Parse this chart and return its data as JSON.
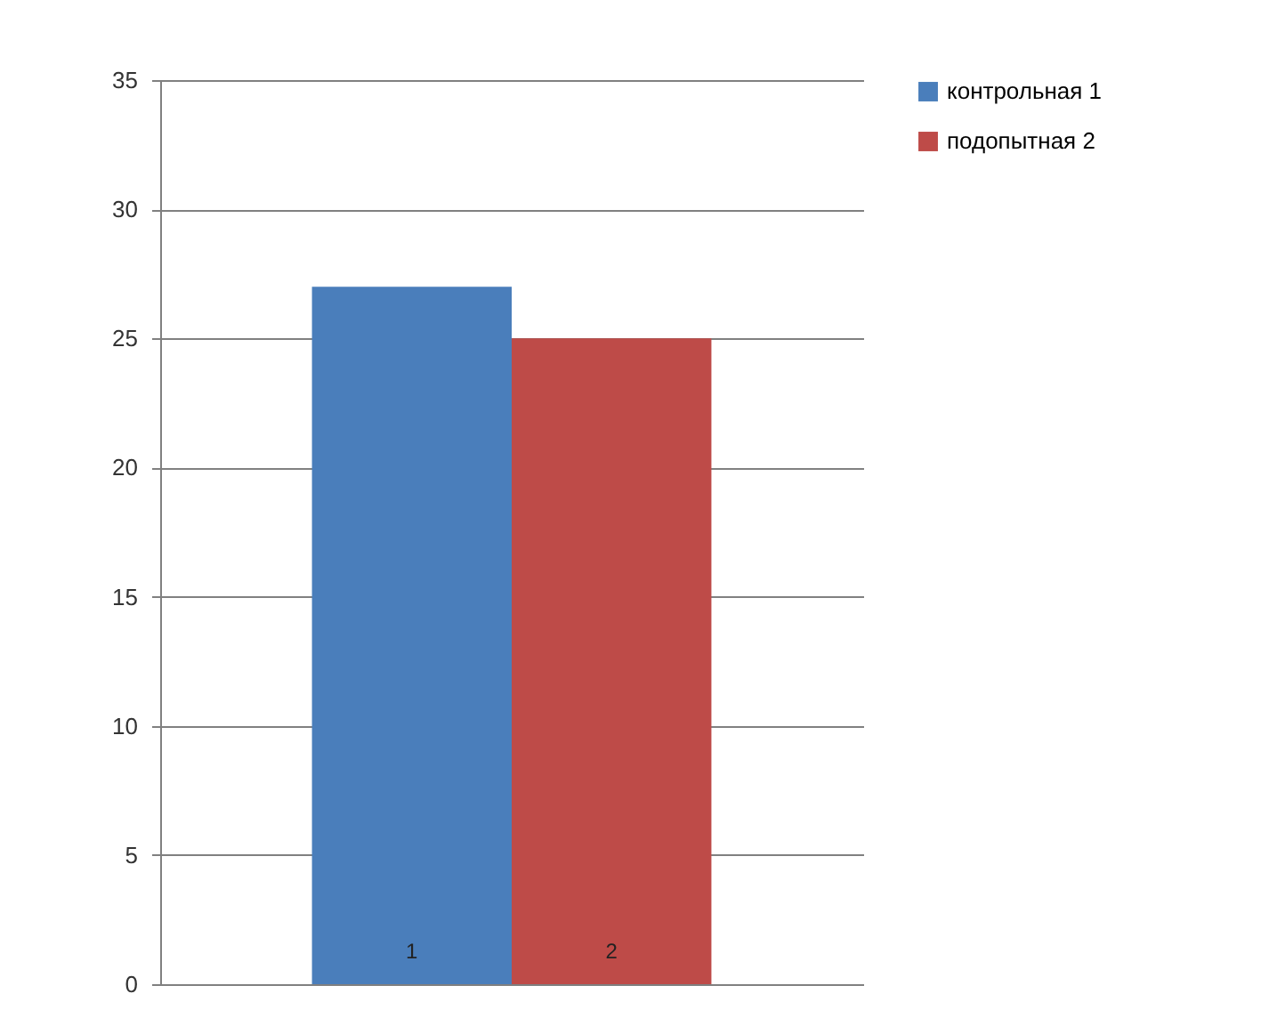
{
  "chart_data": {
    "type": "bar",
    "categories": [
      "1",
      "2"
    ],
    "series": [
      {
        "name": "контрольная 1",
        "color": "#4a7ebb",
        "values": [
          27,
          null
        ]
      },
      {
        "name": "подопытная 2",
        "color": "#be4b48",
        "values": [
          null,
          25
        ]
      }
    ],
    "ylim": [
      0,
      35
    ],
    "yticks": [
      0,
      5,
      10,
      15,
      20,
      25,
      30,
      35
    ],
    "grid": "y",
    "legend": "right"
  }
}
